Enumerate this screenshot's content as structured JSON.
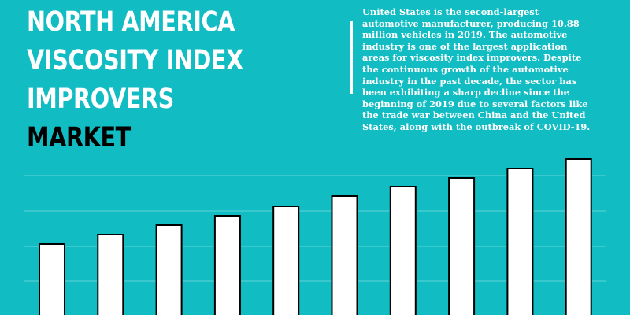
{
  "title": {
    "lines": [
      "NORTH AMERICA",
      "VISCOSITY INDEX",
      "IMPROVERS"
    ],
    "accent_line": "MARKET"
  },
  "description": "United States is the second-largest automotive manufacturer, producing 10.88 million vehicles in 2019. The automotive industry is one of the large­st application areas for viscosity index improv­ers. Despite the continuous growth of the auto­motive industry in the past decade, the sector has been exhibiting a sharp decline since the begin­ning of 2019 due to several factors like the trade war between China and the United States, along with the outbreak of COVID-19.",
  "colors": {
    "background": "#11bcc3",
    "bar_fill": "#ffffff",
    "bar_stroke": "#000000",
    "gridline": "#5fd3d8",
    "title_text": "#ffffff",
    "title_accent": "#000000"
  },
  "chart_data": {
    "type": "bar",
    "categories": [
      "",
      "",
      "",
      "",
      "",
      "",
      "",
      "",
      "",
      ""
    ],
    "values": [
      90,
      102,
      114,
      126,
      138,
      151,
      163,
      174,
      186,
      198
    ],
    "ylim": [
      0,
      200
    ],
    "grid": true,
    "legend": "none",
    "title": "",
    "xlabel": "",
    "ylabel": ""
  }
}
